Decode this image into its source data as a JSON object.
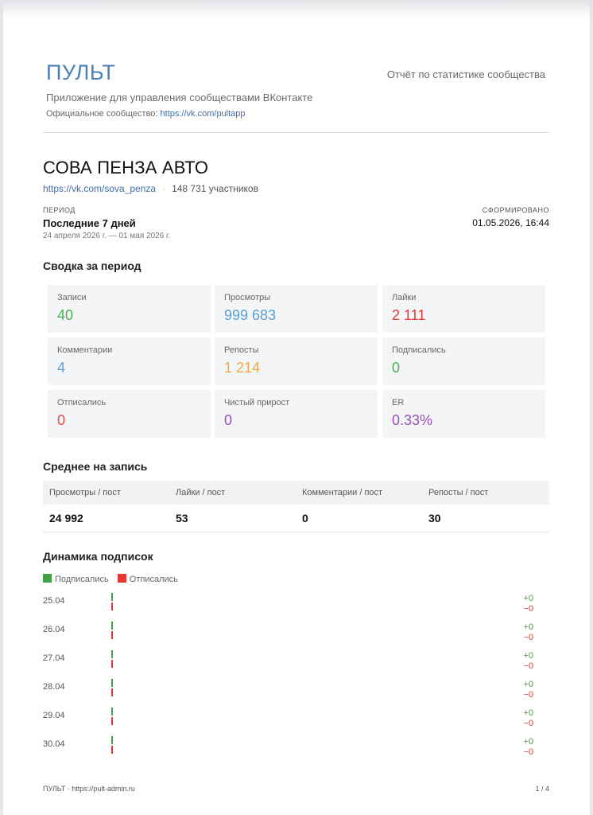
{
  "header": {
    "brand": "ПУЛЬТ",
    "report_title": "Отчёт по статистике сообщества",
    "tagline": "Приложение для управления сообществами ВКонтакте",
    "official_prefix": "Официальное сообщество: ",
    "official_link": "https://vk.com/pultapp"
  },
  "community": {
    "name": "СОВА ПЕНЗА АВТО",
    "url": "https://vk.com/sova_penza",
    "separator": "·",
    "members": "148 731 участников"
  },
  "period": {
    "label": "ПЕРИОД",
    "value": "Последние 7 дней",
    "range": "24 апреля 2026 г. — 01 мая 2026 г."
  },
  "generated": {
    "label": "СФОРМИРОВАНО",
    "value": "01.05.2026, 16:44"
  },
  "summary": {
    "title": "Сводка за период",
    "cards": [
      {
        "label": "Записи",
        "value": "40",
        "color": "#4caf50"
      },
      {
        "label": "Просмотры",
        "value": "999 683",
        "color": "#5b9fd6"
      },
      {
        "label": "Лайки",
        "value": "2 111",
        "color": "#e53935"
      },
      {
        "label": "Комментарии",
        "value": "4",
        "color": "#5b9fd6"
      },
      {
        "label": "Репосты",
        "value": "1 214",
        "color": "#f2a93b"
      },
      {
        "label": "Подписались",
        "value": "0",
        "color": "#4caf50"
      },
      {
        "label": "Отписались",
        "value": "0",
        "color": "#e04e4e"
      },
      {
        "label": "Чистый прирост",
        "value": "0",
        "color": "#9c4fb8"
      },
      {
        "label": "ER",
        "value": "0.33%",
        "color": "#9c4fb8"
      }
    ]
  },
  "average": {
    "title": "Среднее на запись",
    "headers": [
      "Просмотры / пост",
      "Лайки / пост",
      "Комментарии / пост",
      "Репосты / пост"
    ],
    "values": [
      "24 992",
      "53",
      "0",
      "30"
    ]
  },
  "dynamics": {
    "title": "Динамика подписок",
    "legend": {
      "subscribed": "Подписались",
      "unsubscribed": "Отписались"
    },
    "colors": {
      "subscribed": "#43a047",
      "unsubscribed": "#e53935"
    },
    "rows": [
      {
        "date": "25.04",
        "plus": "+0",
        "minus": "−0"
      },
      {
        "date": "26.04",
        "plus": "+0",
        "minus": "−0"
      },
      {
        "date": "27.04",
        "plus": "+0",
        "minus": "−0"
      },
      {
        "date": "28.04",
        "plus": "+0",
        "minus": "−0"
      },
      {
        "date": "29.04",
        "plus": "+0",
        "minus": "−0"
      },
      {
        "date": "30.04",
        "plus": "+0",
        "minus": "−0"
      }
    ]
  },
  "footer": {
    "left": "ПУЛЬТ · https://pult-admin.ru",
    "right": "1 / 4"
  }
}
